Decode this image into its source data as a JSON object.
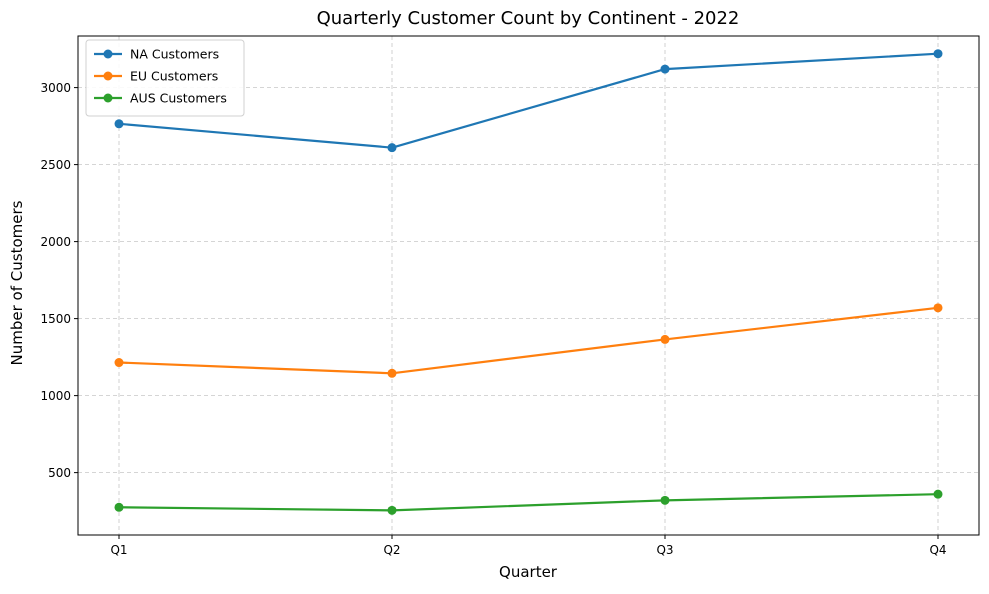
{
  "chart_data": {
    "type": "line",
    "title": "Quarterly Customer Count by Continent - 2022",
    "xlabel": "Quarter",
    "ylabel": "Number of Customers",
    "categories": [
      "Q1",
      "Q2",
      "Q3",
      "Q4"
    ],
    "ylim": [
      95,
      3335
    ],
    "yticks": [
      500,
      1000,
      1500,
      2000,
      2500,
      3000
    ],
    "grid": true,
    "legend_position": "top-left",
    "series": [
      {
        "name": "NA Customers",
        "color": "#1f77b4",
        "marker": "circle",
        "values": [
          2765,
          2610,
          3120,
          3220
        ]
      },
      {
        "name": "EU Customers",
        "color": "#ff7f0e",
        "marker": "circle",
        "values": [
          1215,
          1145,
          1365,
          1570
        ]
      },
      {
        "name": "AUS Customers",
        "color": "#2ca02c",
        "marker": "circle",
        "values": [
          275,
          255,
          320,
          360
        ]
      }
    ]
  }
}
